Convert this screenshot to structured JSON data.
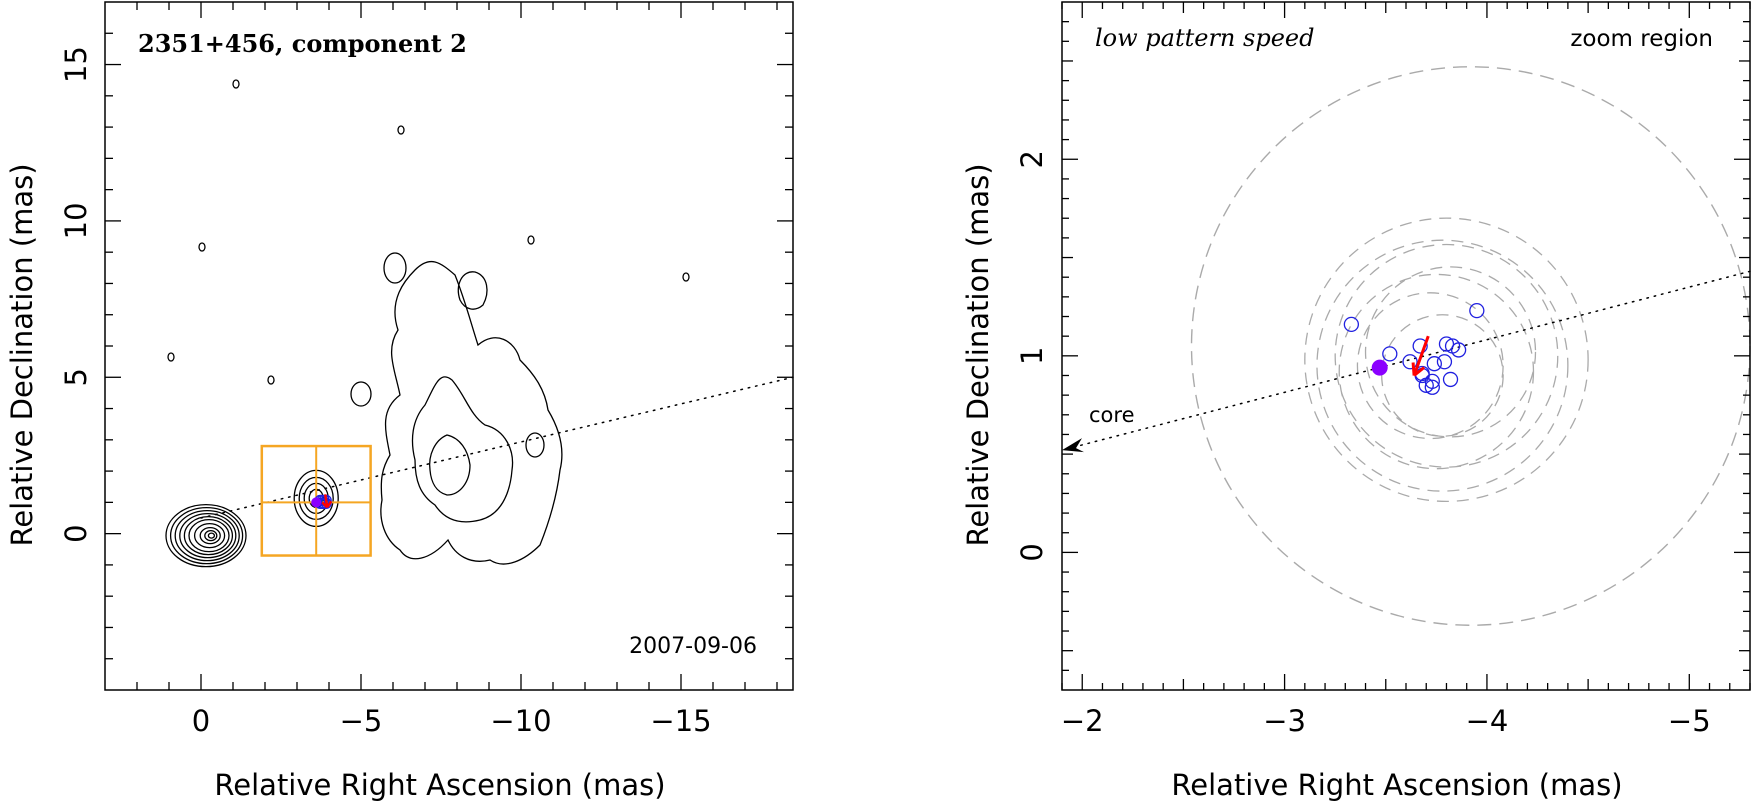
{
  "chart_data": [
    {
      "type": "contour",
      "title": "2351+456, component 2",
      "date_label": "2007-09-06",
      "xlabel": "Relative Right Ascension (mas)",
      "ylabel": "Relative Declination (mas)",
      "xlim": [
        3,
        -18.5
      ],
      "ylim": [
        -5,
        17
      ],
      "xticks": [
        0,
        -5,
        -10,
        -15
      ],
      "xtick_labels": [
        "0",
        "−5",
        "−10",
        "−15"
      ],
      "yticks": [
        0,
        5,
        10,
        15
      ],
      "ytick_labels": [
        "0",
        "5",
        "10",
        "15"
      ],
      "core_position": [
        0,
        0
      ],
      "component_position": [
        -3.6,
        1.0
      ],
      "jet_direction_line": {
        "from": [
          0,
          0.5
        ],
        "to": [
          -18.5,
          5.0
        ],
        "style": "dotted"
      },
      "zoom_boxes": [
        {
          "x": [
            -1.9,
            -5.3
          ],
          "y": [
            -0.7,
            2.8
          ]
        }
      ],
      "colors": {
        "contour": "#000000",
        "zoom_box": "#f5a623",
        "component": "#2020e0",
        "marker": "#8b00ff",
        "arrow": "#ff0000"
      }
    },
    {
      "type": "scatter",
      "title": "low pattern speed",
      "corner_label": "zoom region",
      "annotation": "core",
      "xlabel": "Relative Right Ascension (mas)",
      "ylabel": "Relative Declination (mas)",
      "xlim": [
        -1.9,
        -5.3
      ],
      "ylim": [
        -0.7,
        2.8
      ],
      "xticks": [
        -2,
        -3,
        -4,
        -5
      ],
      "xtick_labels": [
        "−2",
        "−3",
        "−4",
        "−5"
      ],
      "yticks": [
        0,
        1,
        2
      ],
      "ytick_labels": [
        "0",
        "1",
        "2"
      ],
      "zoom_circle": {
        "center": [
          -3.92,
          1.05
        ],
        "radius": 1.38
      },
      "dashed_circles": [
        {
          "center": [
            -3.8,
            0.98
          ],
          "radius": 0.7
        },
        {
          "center": [
            -3.78,
            0.95
          ],
          "radius": 0.62
        },
        {
          "center": [
            -3.8,
            1.0
          ],
          "radius": 0.55
        },
        {
          "center": [
            -3.75,
            0.92
          ],
          "radius": 0.48
        },
        {
          "center": [
            -3.82,
            1.02
          ],
          "radius": 0.42
        },
        {
          "center": [
            -3.72,
            0.95
          ],
          "radius": 0.36
        },
        {
          "center": [
            -3.78,
            0.9
          ],
          "radius": 0.3
        }
      ],
      "open_points": [
        {
          "x": -3.33,
          "y": 1.16
        },
        {
          "x": -3.95,
          "y": 1.23
        },
        {
          "x": -3.52,
          "y": 1.01
        },
        {
          "x": -3.62,
          "y": 0.97
        },
        {
          "x": -3.67,
          "y": 1.05
        },
        {
          "x": -3.8,
          "y": 1.06
        },
        {
          "x": -3.83,
          "y": 1.05
        },
        {
          "x": -3.86,
          "y": 1.03
        },
        {
          "x": -3.74,
          "y": 0.96
        },
        {
          "x": -3.79,
          "y": 0.97
        },
        {
          "x": -3.68,
          "y": 0.91
        },
        {
          "x": -3.73,
          "y": 0.87
        },
        {
          "x": -3.82,
          "y": 0.88
        },
        {
          "x": -3.7,
          "y": 0.85
        },
        {
          "x": -3.68,
          "y": 0.9
        },
        {
          "x": -3.73,
          "y": 0.84
        }
      ],
      "filled_point": {
        "x": -3.47,
        "y": 0.94
      },
      "arrow": {
        "from": [
          -3.71,
          1.1
        ],
        "to": [
          -3.64,
          0.9
        ]
      },
      "jet_direction_line": {
        "from": [
          -5.3,
          1.43
        ],
        "to": [
          -1.9,
          0.52
        ],
        "style": "dotted",
        "arrowhead_at": [
          -1.9,
          0.52
        ]
      },
      "colors": {
        "dashed_circle": "#aaaaaa",
        "points": "#2020e0",
        "filled": "#8b00ff",
        "arrow": "#ff0000"
      }
    }
  ]
}
